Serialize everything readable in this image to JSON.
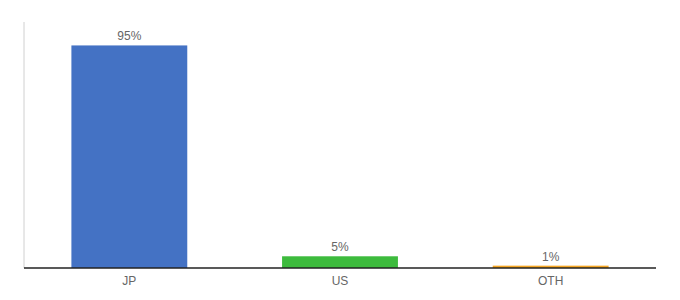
{
  "chart_data": {
    "type": "bar",
    "categories": [
      "JP",
      "US",
      "OTH"
    ],
    "values": [
      95,
      5,
      1
    ],
    "value_labels": [
      "95%",
      "5%",
      "1%"
    ],
    "colors": [
      "#4472c4",
      "#3dbb3d",
      "#f5a623"
    ],
    "ylim": [
      0,
      105
    ],
    "grid": false,
    "data_labels": true,
    "tick_labels": "x"
  }
}
